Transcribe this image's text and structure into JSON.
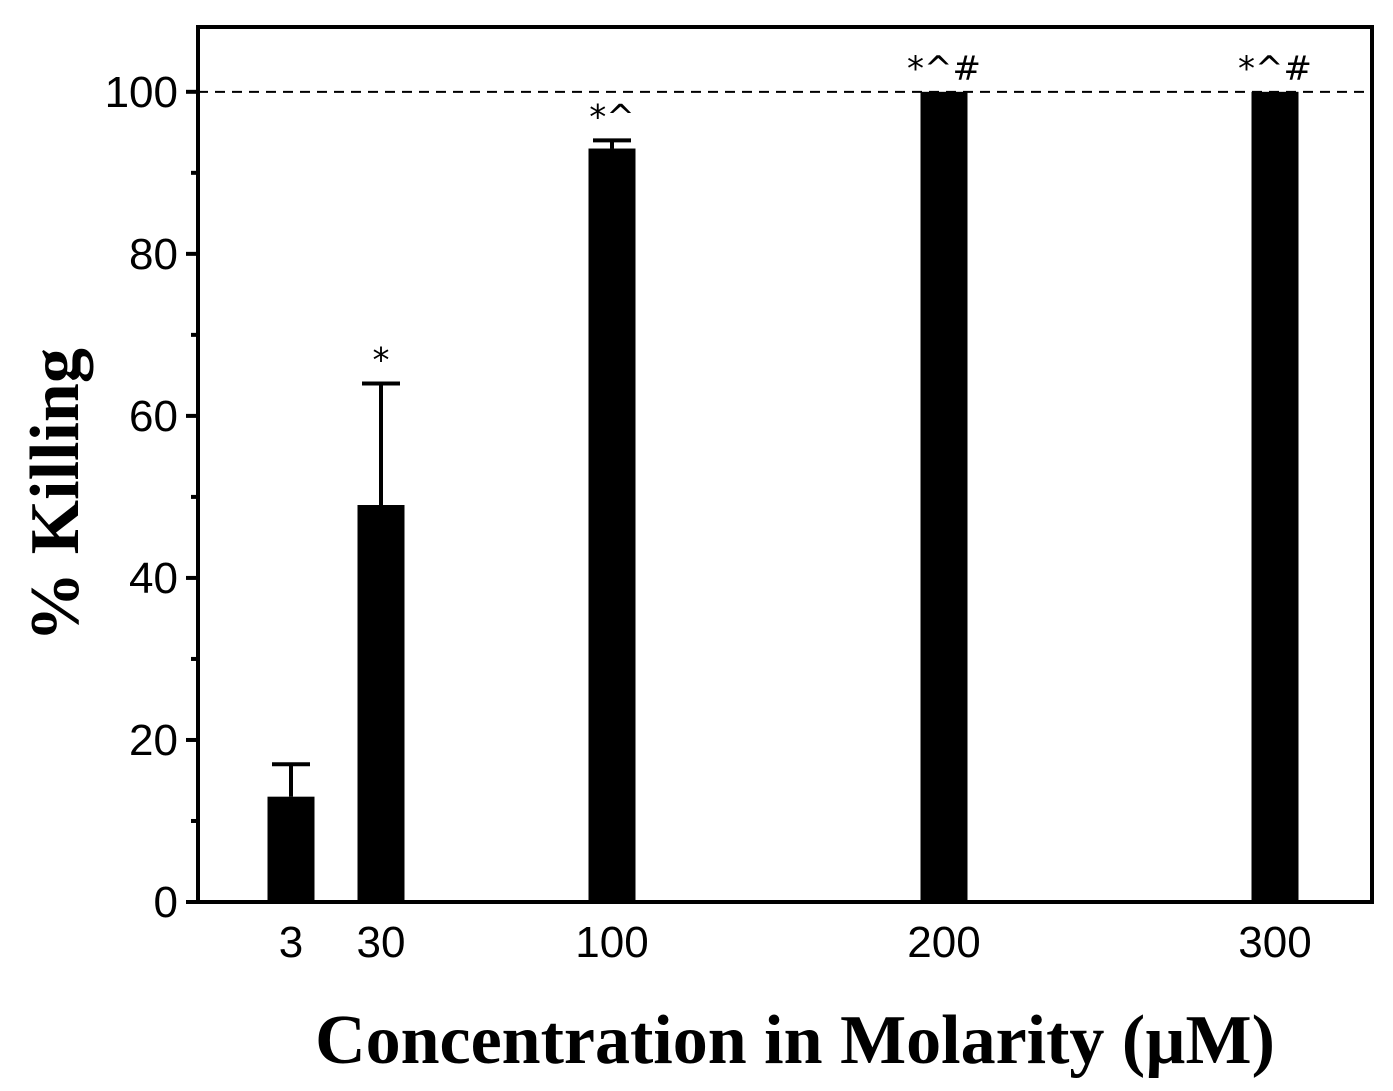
{
  "chart_data": {
    "type": "bar",
    "title": "",
    "xlabel": "Concentration in Molarity (µM)",
    "ylabel": "% Killing",
    "categories": [
      "3",
      "30",
      "100",
      "200",
      "300"
    ],
    "x": [
      3,
      30,
      100,
      200,
      300
    ],
    "values": [
      13,
      49,
      93,
      100,
      100
    ],
    "errors": [
      4,
      15,
      1,
      0,
      0
    ],
    "annotations": [
      "",
      "*",
      "*^",
      "*^#",
      "*^#"
    ],
    "ylim": [
      0,
      108
    ],
    "yticks": [
      0,
      20,
      40,
      60,
      80,
      100
    ],
    "yminor_ticks": [
      10,
      30,
      50,
      70,
      90
    ],
    "reference_line": {
      "y": 100,
      "style": "dashed"
    },
    "grid": false,
    "bar_color": "#000000"
  }
}
